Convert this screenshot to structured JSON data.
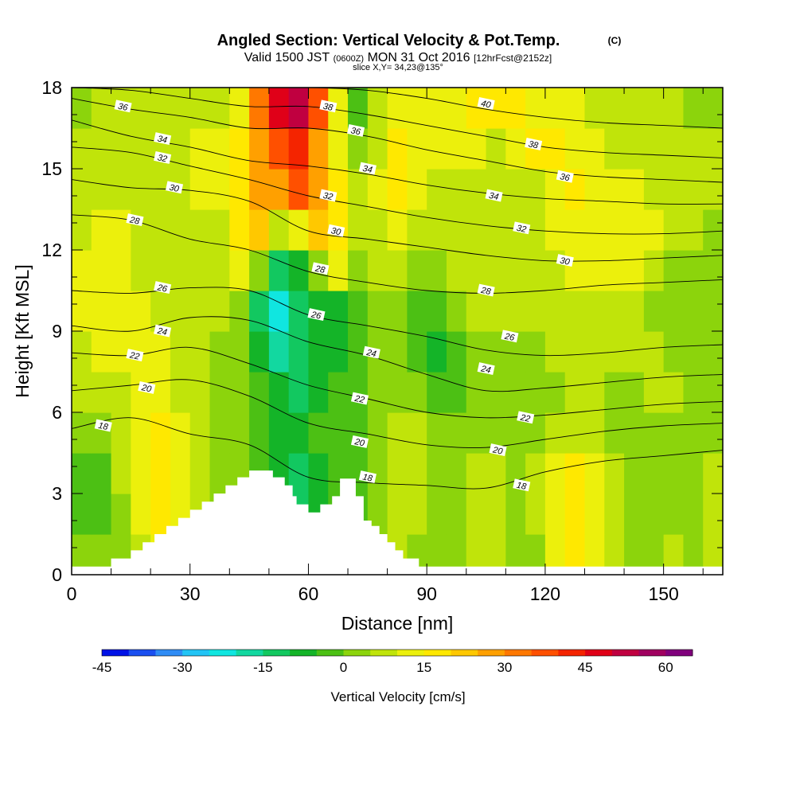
{
  "header": {
    "title": "Angled Section: Vertical Velocity & Pot.Temp.",
    "title_unit": "(C)",
    "valid_prefix": "Valid 1500 JST",
    "valid_utc": "(0600Z)",
    "valid_date": "MON 31 Oct 2016",
    "forecast": "[12hrFcst@2152z]",
    "slice": "slice X,Y= 34,23@135°"
  },
  "chart_data": {
    "type": "heatmap",
    "title": "Angled Section: Vertical Velocity & Pot.Temp.",
    "xlabel": "Distance [nm]",
    "ylabel": "Height [Kft MSL]",
    "xlim": [
      0,
      165
    ],
    "ylim": [
      0,
      18
    ],
    "x_ticks": [
      0,
      30,
      60,
      90,
      120,
      150
    ],
    "y_ticks": [
      0,
      3,
      6,
      9,
      12,
      15,
      18
    ],
    "colorbar": {
      "label": "Vertical Velocity [cm/s]",
      "range": [
        -45,
        65
      ],
      "step": 5,
      "tick_values": [
        -45,
        -30,
        -15,
        0,
        15,
        30,
        45,
        60
      ],
      "tick_labels": [
        "-45",
        "-30",
        "-15",
        "0",
        "15",
        "30",
        "45",
        "60"
      ],
      "colors": [
        "#0012e6",
        "#1b4ff0",
        "#2f8cf5",
        "#22c4f5",
        "#10e6e0",
        "#12d8a0",
        "#12c860",
        "#14b428",
        "#4cc014",
        "#8cd40c",
        "#c0e40a",
        "#ecf00c",
        "#ffe800",
        "#ffc800",
        "#ffa000",
        "#ff7800",
        "#ff5000",
        "#f42400",
        "#e00018",
        "#c00040",
        "#a00060",
        "#80007c"
      ]
    },
    "velocity_cells": {
      "x": [
        0,
        5,
        10,
        15,
        20,
        25,
        30,
        35,
        40,
        45,
        50,
        55,
        60,
        65,
        70,
        75,
        80,
        85,
        90,
        95,
        100,
        105,
        110,
        115,
        120,
        125,
        130,
        135,
        140,
        145,
        150,
        155,
        160,
        165
      ],
      "y": [
        0,
        1.5,
        3,
        4.5,
        6,
        7.5,
        9,
        10.5,
        12,
        13.5,
        15,
        16.5,
        18
      ],
      "w": [
        [
          0,
          0,
          0,
          5,
          10,
          5,
          0,
          -5,
          -5,
          -5,
          -5,
          -10,
          -10,
          -10,
          -5,
          0,
          5,
          0,
          0,
          0,
          5,
          5,
          0,
          0,
          10,
          15,
          10,
          5,
          0,
          0,
          5,
          0,
          5,
          0
        ],
        [
          -5,
          -5,
          0,
          10,
          15,
          10,
          5,
          0,
          0,
          -5,
          -10,
          -15,
          -10,
          -5,
          -5,
          0,
          5,
          5,
          0,
          0,
          5,
          5,
          0,
          5,
          10,
          15,
          10,
          5,
          0,
          0,
          0,
          0,
          5,
          0
        ],
        [
          -5,
          -5,
          5,
          10,
          15,
          10,
          5,
          0,
          0,
          -5,
          -10,
          -15,
          -10,
          -5,
          -5,
          0,
          5,
          5,
          0,
          0,
          5,
          5,
          0,
          5,
          10,
          15,
          10,
          5,
          0,
          0,
          0,
          0,
          5,
          0
        ],
        [
          0,
          0,
          5,
          10,
          15,
          10,
          5,
          0,
          0,
          -5,
          -10,
          -10,
          -5,
          -5,
          -5,
          0,
          5,
          5,
          0,
          0,
          0,
          0,
          0,
          0,
          5,
          5,
          5,
          0,
          0,
          0,
          0,
          0,
          0,
          0
        ],
        [
          5,
          5,
          5,
          10,
          10,
          5,
          5,
          0,
          0,
          -5,
          -10,
          -15,
          -10,
          -5,
          -5,
          0,
          0,
          0,
          -5,
          -5,
          0,
          0,
          0,
          0,
          0,
          5,
          5,
          0,
          0,
          5,
          5,
          0,
          0,
          0
        ],
        [
          5,
          10,
          10,
          10,
          10,
          5,
          5,
          0,
          0,
          -10,
          -20,
          -15,
          -10,
          -10,
          -5,
          0,
          0,
          -5,
          -10,
          -5,
          0,
          0,
          0,
          0,
          5,
          5,
          5,
          5,
          5,
          5,
          0,
          0,
          0,
          0
        ],
        [
          10,
          10,
          10,
          10,
          5,
          5,
          5,
          5,
          0,
          -15,
          -25,
          -15,
          -10,
          -10,
          -5,
          0,
          0,
          -5,
          -5,
          0,
          5,
          5,
          5,
          5,
          5,
          5,
          5,
          5,
          5,
          0,
          0,
          0,
          0,
          0
        ],
        [
          10,
          10,
          10,
          5,
          5,
          5,
          5,
          5,
          10,
          0,
          -15,
          -10,
          0,
          10,
          0,
          5,
          5,
          0,
          0,
          5,
          5,
          5,
          5,
          5,
          5,
          10,
          10,
          10,
          10,
          5,
          0,
          0,
          0,
          0
        ],
        [
          5,
          10,
          10,
          5,
          5,
          5,
          5,
          5,
          15,
          20,
          5,
          10,
          20,
          15,
          5,
          5,
          10,
          5,
          5,
          5,
          5,
          5,
          5,
          5,
          10,
          10,
          10,
          10,
          10,
          10,
          5,
          5,
          0,
          0
        ],
        [
          5,
          5,
          5,
          5,
          5,
          5,
          10,
          10,
          15,
          25,
          25,
          35,
          25,
          15,
          5,
          10,
          15,
          10,
          5,
          5,
          5,
          5,
          5,
          5,
          10,
          15,
          10,
          10,
          10,
          5,
          5,
          5,
          5,
          0
        ],
        [
          5,
          5,
          5,
          5,
          5,
          5,
          10,
          10,
          15,
          25,
          35,
          40,
          25,
          10,
          0,
          5,
          15,
          10,
          10,
          10,
          10,
          5,
          10,
          15,
          15,
          10,
          10,
          5,
          5,
          5,
          5,
          5,
          5,
          5
        ],
        [
          0,
          5,
          5,
          5,
          5,
          5,
          5,
          5,
          10,
          30,
          45,
          50,
          35,
          10,
          -5,
          5,
          10,
          10,
          10,
          10,
          15,
          15,
          15,
          10,
          10,
          10,
          5,
          5,
          5,
          5,
          5,
          0,
          0,
          0
        ],
        [
          0,
          5,
          5,
          5,
          5,
          5,
          5,
          5,
          10,
          35,
          50,
          60,
          40,
          10,
          -5,
          5,
          10,
          10,
          10,
          10,
          15,
          15,
          10,
          10,
          10,
          5,
          5,
          5,
          0,
          0,
          0,
          0,
          0,
          0
        ]
      ]
    },
    "terrain": {
      "x": [
        0,
        10,
        15,
        18,
        21,
        24,
        27,
        30,
        33,
        36,
        39,
        42,
        45,
        48,
        51,
        54,
        56,
        57,
        60,
        63,
        66,
        68,
        70,
        72,
        74,
        76,
        78,
        80,
        82,
        84,
        86,
        88,
        90,
        165
      ],
      "height": [
        0.3,
        0.6,
        0.9,
        1.2,
        1.5,
        1.8,
        2.1,
        2.4,
        2.7,
        3.0,
        3.3,
        3.6,
        3.85,
        3.85,
        3.6,
        3.3,
        2.9,
        2.6,
        2.3,
        2.6,
        2.9,
        3.55,
        3.55,
        2.9,
        2.0,
        1.8,
        1.5,
        1.2,
        0.9,
        0.6,
        0.6,
        0.3,
        0.3,
        0.3
      ]
    },
    "isentropes": {
      "theta": [
        18,
        20,
        22,
        24,
        26,
        28,
        30,
        32,
        34,
        36,
        38,
        40
      ],
      "x": [
        0,
        15,
        30,
        45,
        60,
        75,
        90,
        105,
        120,
        135,
        150,
        165
      ],
      "height": [
        [
          5.4,
          5.8,
          5.2,
          4.8,
          3.6,
          3.4,
          3.3,
          3.2,
          3.8,
          4.2,
          4.4,
          4.6
        ],
        [
          6.8,
          7.0,
          7.2,
          6.6,
          5.6,
          5.2,
          4.8,
          4.7,
          5.0,
          5.3,
          5.5,
          5.6
        ],
        [
          8.2,
          8.1,
          8.4,
          7.8,
          7.0,
          6.5,
          6.0,
          5.8,
          5.9,
          6.1,
          6.3,
          6.4
        ],
        [
          9.2,
          9.0,
          9.5,
          9.4,
          8.6,
          8.1,
          7.4,
          6.8,
          6.9,
          7.1,
          7.3,
          7.4
        ],
        [
          10.5,
          10.4,
          10.6,
          10.5,
          9.6,
          9.2,
          8.8,
          8.3,
          8.1,
          8.2,
          8.4,
          8.5
        ],
        [
          13.3,
          13.1,
          12.4,
          12.0,
          11.2,
          10.8,
          10.5,
          10.4,
          10.5,
          10.7,
          10.8,
          10.9
        ],
        [
          14.6,
          14.3,
          14.2,
          13.8,
          12.7,
          12.4,
          12.1,
          11.8,
          11.6,
          11.6,
          11.7,
          11.8
        ],
        [
          15.8,
          15.6,
          15.1,
          14.6,
          14.0,
          13.6,
          13.2,
          12.9,
          12.7,
          12.6,
          12.6,
          12.7
        ],
        [
          16.8,
          16.2,
          15.8,
          15.3,
          15.1,
          14.8,
          14.4,
          14.1,
          13.9,
          13.8,
          13.7,
          13.7
        ],
        [
          17.6,
          17.2,
          16.9,
          16.5,
          16.5,
          16.2,
          15.7,
          15.3,
          14.9,
          14.7,
          14.6,
          14.5
        ],
        [
          18.0,
          17.9,
          17.6,
          17.3,
          17.3,
          17.0,
          16.6,
          16.2,
          15.8,
          15.6,
          15.5,
          15.4
        ],
        [
          18.0,
          18.0,
          18.0,
          18.0,
          18.0,
          17.9,
          17.6,
          17.2,
          16.9,
          16.7,
          16.6,
          16.5
        ]
      ]
    },
    "contour_labels": [
      {
        "text": "36",
        "x": 13,
        "y": 17.3
      },
      {
        "text": "34",
        "x": 23,
        "y": 16.1
      },
      {
        "text": "32",
        "x": 23,
        "y": 15.4
      },
      {
        "text": "30",
        "x": 26,
        "y": 14.3
      },
      {
        "text": "28",
        "x": 16,
        "y": 13.1
      },
      {
        "text": "26",
        "x": 23,
        "y": 10.6
      },
      {
        "text": "24",
        "x": 23,
        "y": 9.0
      },
      {
        "text": "22",
        "x": 16,
        "y": 8.1
      },
      {
        "text": "20",
        "x": 19,
        "y": 6.9
      },
      {
        "text": "18",
        "x": 8,
        "y": 5.5
      },
      {
        "text": "38",
        "x": 65,
        "y": 17.3
      },
      {
        "text": "36",
        "x": 72,
        "y": 16.4
      },
      {
        "text": "34",
        "x": 75,
        "y": 15.0
      },
      {
        "text": "32",
        "x": 65,
        "y": 14.0
      },
      {
        "text": "30",
        "x": 67,
        "y": 12.7
      },
      {
        "text": "28",
        "x": 63,
        "y": 11.3
      },
      {
        "text": "26",
        "x": 62,
        "y": 9.6
      },
      {
        "text": "24",
        "x": 76,
        "y": 8.2
      },
      {
        "text": "22",
        "x": 73,
        "y": 6.5
      },
      {
        "text": "20",
        "x": 73,
        "y": 4.9
      },
      {
        "text": "18",
        "x": 75,
        "y": 3.6
      },
      {
        "text": "40",
        "x": 105,
        "y": 17.4
      },
      {
        "text": "38",
        "x": 117,
        "y": 15.9
      },
      {
        "text": "36",
        "x": 125,
        "y": 14.7
      },
      {
        "text": "34",
        "x": 107,
        "y": 14.0
      },
      {
        "text": "32",
        "x": 114,
        "y": 12.8
      },
      {
        "text": "30",
        "x": 125,
        "y": 11.6
      },
      {
        "text": "28",
        "x": 105,
        "y": 10.5
      },
      {
        "text": "26",
        "x": 111,
        "y": 8.8
      },
      {
        "text": "24",
        "x": 105,
        "y": 7.6
      },
      {
        "text": "22",
        "x": 115,
        "y": 5.8
      },
      {
        "text": "20",
        "x": 108,
        "y": 4.6
      },
      {
        "text": "18",
        "x": 114,
        "y": 3.3
      }
    ]
  }
}
